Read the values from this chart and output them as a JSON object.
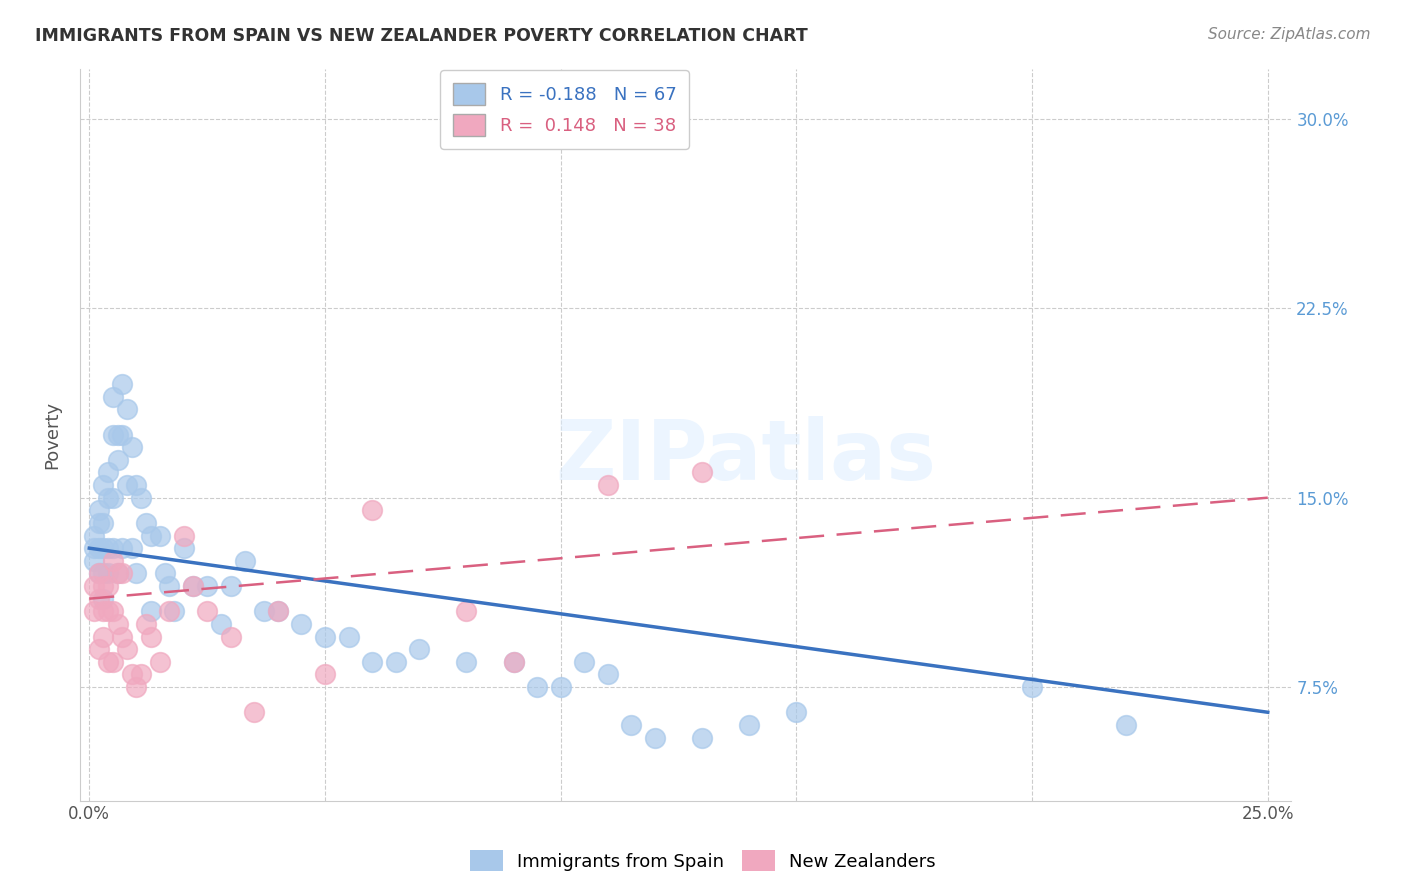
{
  "title": "IMMIGRANTS FROM SPAIN VS NEW ZEALANDER POVERTY CORRELATION CHART",
  "source": "Source: ZipAtlas.com",
  "ylabel": "Poverty",
  "yticks": [
    "7.5%",
    "15.0%",
    "22.5%",
    "30.0%"
  ],
  "ytick_values": [
    0.075,
    0.15,
    0.225,
    0.3
  ],
  "xtick_values": [
    0.0,
    0.05,
    0.1,
    0.15,
    0.2,
    0.25
  ],
  "xtick_labels": [
    "0.0%",
    "",
    "",
    "",
    "",
    "25.0%"
  ],
  "xlim": [
    -0.002,
    0.255
  ],
  "ylim": [
    0.03,
    0.32
  ],
  "blue_color": "#a8c8ea",
  "pink_color": "#f0a8bf",
  "blue_line_color": "#3a72c0",
  "pink_line_color": "#d96080",
  "legend_blue_R": "-0.188",
  "legend_blue_N": "67",
  "legend_pink_R": "0.148",
  "legend_pink_N": "38",
  "watermark": "ZIPatlas",
  "blue_line_start_y": 0.13,
  "blue_line_end_y": 0.065,
  "pink_line_start_y": 0.11,
  "pink_line_end_y": 0.15,
  "blue_points_x": [
    0.001,
    0.001,
    0.001,
    0.002,
    0.002,
    0.002,
    0.002,
    0.003,
    0.003,
    0.003,
    0.003,
    0.003,
    0.004,
    0.004,
    0.004,
    0.004,
    0.005,
    0.005,
    0.005,
    0.005,
    0.006,
    0.006,
    0.006,
    0.007,
    0.007,
    0.007,
    0.008,
    0.008,
    0.009,
    0.009,
    0.01,
    0.01,
    0.011,
    0.012,
    0.013,
    0.013,
    0.015,
    0.016,
    0.017,
    0.018,
    0.02,
    0.022,
    0.025,
    0.028,
    0.03,
    0.033,
    0.037,
    0.04,
    0.045,
    0.05,
    0.055,
    0.06,
    0.065,
    0.07,
    0.08,
    0.09,
    0.095,
    0.1,
    0.105,
    0.11,
    0.115,
    0.12,
    0.13,
    0.14,
    0.15,
    0.2,
    0.22
  ],
  "blue_points_y": [
    0.135,
    0.13,
    0.125,
    0.145,
    0.14,
    0.13,
    0.12,
    0.155,
    0.14,
    0.13,
    0.12,
    0.11,
    0.16,
    0.15,
    0.13,
    0.12,
    0.19,
    0.175,
    0.15,
    0.13,
    0.175,
    0.165,
    0.12,
    0.195,
    0.175,
    0.13,
    0.185,
    0.155,
    0.17,
    0.13,
    0.155,
    0.12,
    0.15,
    0.14,
    0.135,
    0.105,
    0.135,
    0.12,
    0.115,
    0.105,
    0.13,
    0.115,
    0.115,
    0.1,
    0.115,
    0.125,
    0.105,
    0.105,
    0.1,
    0.095,
    0.095,
    0.085,
    0.085,
    0.09,
    0.085,
    0.085,
    0.075,
    0.075,
    0.085,
    0.08,
    0.06,
    0.055,
    0.055,
    0.06,
    0.065,
    0.075,
    0.06
  ],
  "pink_points_x": [
    0.001,
    0.001,
    0.002,
    0.002,
    0.002,
    0.003,
    0.003,
    0.003,
    0.004,
    0.004,
    0.004,
    0.005,
    0.005,
    0.005,
    0.006,
    0.006,
    0.007,
    0.007,
    0.008,
    0.009,
    0.01,
    0.011,
    0.012,
    0.013,
    0.015,
    0.017,
    0.02,
    0.022,
    0.025,
    0.03,
    0.035,
    0.04,
    0.05,
    0.06,
    0.08,
    0.09,
    0.11,
    0.13
  ],
  "pink_points_y": [
    0.115,
    0.105,
    0.12,
    0.11,
    0.09,
    0.115,
    0.105,
    0.095,
    0.115,
    0.105,
    0.085,
    0.125,
    0.105,
    0.085,
    0.12,
    0.1,
    0.12,
    0.095,
    0.09,
    0.08,
    0.075,
    0.08,
    0.1,
    0.095,
    0.085,
    0.105,
    0.135,
    0.115,
    0.105,
    0.095,
    0.065,
    0.105,
    0.08,
    0.145,
    0.105,
    0.085,
    0.155,
    0.16
  ]
}
